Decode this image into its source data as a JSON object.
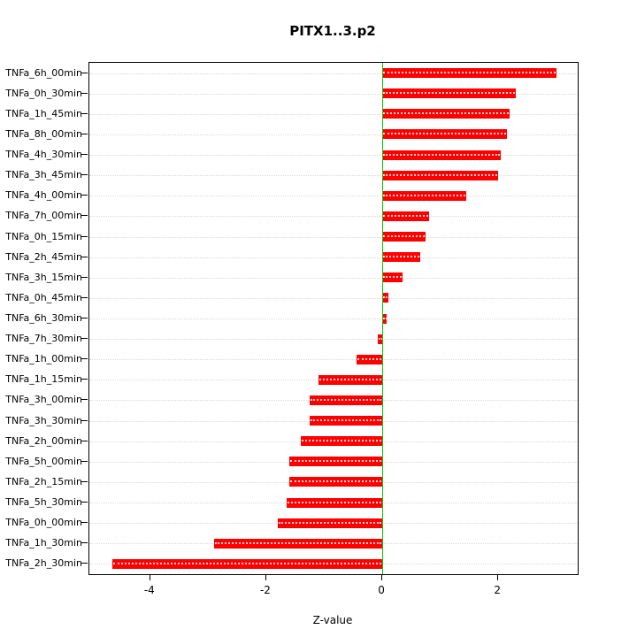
{
  "chart_data": {
    "type": "bar",
    "orientation": "horizontal",
    "title": "PITX1..3.p2",
    "xlabel": "Z-value",
    "categories": [
      "TNFa_6h_00min",
      "TNFa_0h_30min",
      "TNFa_1h_45min",
      "TNFa_8h_00min",
      "TNFa_4h_30min",
      "TNFa_3h_45min",
      "TNFa_4h_00min",
      "TNFa_7h_00min",
      "TNFa_0h_15min",
      "TNFa_2h_45min",
      "TNFa_3h_15min",
      "TNFa_0h_45min",
      "TNFa_6h_30min",
      "TNFa_7h_30min",
      "TNFa_1h_00min",
      "TNFa_1h_15min",
      "TNFa_3h_00min",
      "TNFa_3h_30min",
      "TNFa_2h_00min",
      "TNFa_5h_00min",
      "TNFa_2h_15min",
      "TNFa_5h_30min",
      "TNFa_0h_00min",
      "TNFa_1h_30min",
      "TNFa_2h_30min"
    ],
    "values": [
      3.0,
      2.3,
      2.2,
      2.15,
      2.05,
      2.0,
      1.45,
      0.8,
      0.75,
      0.65,
      0.35,
      0.1,
      0.08,
      -0.08,
      -0.45,
      -1.1,
      -1.25,
      -1.25,
      -1.4,
      -1.6,
      -1.6,
      -1.65,
      -1.8,
      -2.9,
      -4.65
    ],
    "xticks": [
      -4,
      -2,
      0,
      2
    ],
    "xlim": [
      -5.05,
      3.37
    ],
    "grid": true,
    "colors": {
      "bar": "#ff0000",
      "bar_dots": "#ffffff",
      "zero_line": "#00cc00",
      "grid": "#d8d8d8",
      "axis": "#000000"
    }
  }
}
